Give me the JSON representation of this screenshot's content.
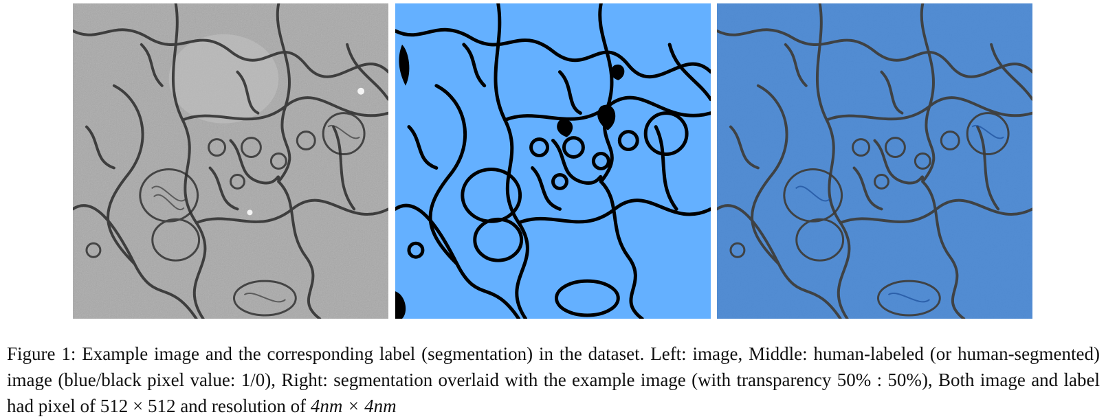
{
  "figure": {
    "panels": [
      {
        "id": "left",
        "kind": "grayscale-em-image"
      },
      {
        "id": "middle",
        "kind": "binary-label-map",
        "colors": {
          "cell": "#64b0ff",
          "membrane": "#000000"
        }
      },
      {
        "id": "right",
        "kind": "overlay",
        "colors": {
          "overlay": "#3a86e6"
        }
      }
    ],
    "caption": {
      "label": "Figure 1:",
      "part1": "Example image and the corresponding label (segmentation) in the dataset. Left: image, Middle: human-labeled (or human-segmented) image (blue/black pixel value: ",
      "ratio": "1/0",
      "part2": "), Right: segmentation overlaid with the example image (with transparency ",
      "transparency": "50% : 50%",
      "part3": "), Both image and label had pixel of ",
      "pixels": "512 × 512",
      "part4": " and resolution of ",
      "resolution": "4nm × 4nm"
    }
  }
}
